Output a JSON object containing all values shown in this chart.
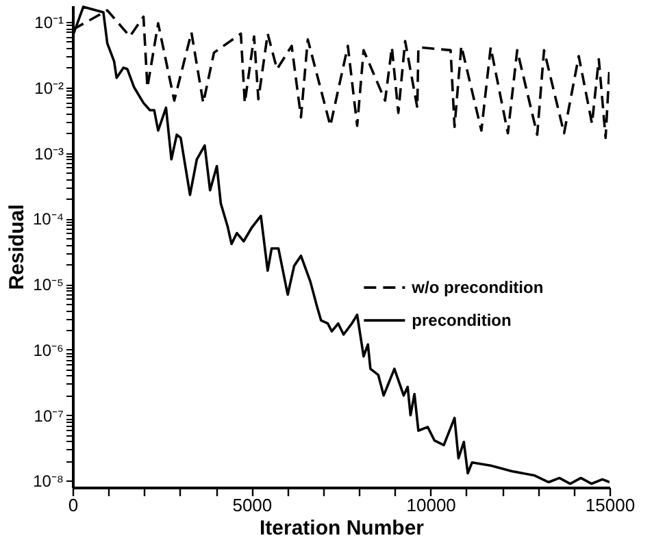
{
  "chart_data": {
    "type": "line",
    "xlabel": "Iteration Number",
    "ylabel": "Residual",
    "log": "y",
    "grid": false,
    "legend": "right",
    "xlim": [
      0,
      15000
    ],
    "xticks": [
      0,
      {
        "value": 1000,
        "label": null
      },
      {
        "value": 2000,
        "label": null
      },
      {
        "value": 3000,
        "label": null
      },
      {
        "value": 4000,
        "label": null
      },
      5000,
      {
        "value": 6000,
        "label": null
      },
      {
        "value": 7000,
        "label": null
      },
      {
        "value": 8000,
        "label": null
      },
      {
        "value": 9000,
        "label": null
      },
      10000,
      {
        "value": 11000,
        "label": null
      },
      {
        "value": 12000,
        "label": null
      },
      {
        "value": 13000,
        "label": null
      },
      {
        "value": 14000,
        "label": null
      },
      15000
    ],
    "ylim": [
      7.94e-09,
      0.178
    ],
    "yticks": [
      {
        "value": 1e-08,
        "label": "10⁻⁸"
      },
      {
        "value": 2e-08,
        "label": null
      },
      {
        "value": 3e-08,
        "label": null
      },
      {
        "value": 4e-08,
        "label": null
      },
      {
        "value": 5e-08,
        "label": null
      },
      {
        "value": 6e-08,
        "label": null
      },
      {
        "value": 7e-08,
        "label": null
      },
      {
        "value": 8e-08,
        "label": null
      },
      {
        "value": 9e-08,
        "label": null
      },
      {
        "value": 1e-07,
        "label": "10⁻⁷"
      },
      {
        "value": 2e-07,
        "label": null
      },
      {
        "value": 3e-07,
        "label": null
      },
      {
        "value": 4e-07,
        "label": null
      },
      {
        "value": 5e-07,
        "label": null
      },
      {
        "value": 6e-07,
        "label": null
      },
      {
        "value": 7e-07,
        "label": null
      },
      {
        "value": 8e-07,
        "label": null
      },
      {
        "value": 9e-07,
        "label": null
      },
      {
        "value": 1e-06,
        "label": "10⁻⁶"
      },
      {
        "value": 2e-06,
        "label": null
      },
      {
        "value": 3e-06,
        "label": null
      },
      {
        "value": 4e-06,
        "label": null
      },
      {
        "value": 5e-06,
        "label": null
      },
      {
        "value": 6e-06,
        "label": null
      },
      {
        "value": 7e-06,
        "label": null
      },
      {
        "value": 8e-06,
        "label": null
      },
      {
        "value": 9e-06,
        "label": null
      },
      {
        "value": 1e-05,
        "label": "10⁻⁵"
      },
      {
        "value": 2e-05,
        "label": null
      },
      {
        "value": 3e-05,
        "label": null
      },
      {
        "value": 4e-05,
        "label": null
      },
      {
        "value": 5e-05,
        "label": null
      },
      {
        "value": 6e-05,
        "label": null
      },
      {
        "value": 7e-05,
        "label": null
      },
      {
        "value": 8e-05,
        "label": null
      },
      {
        "value": 9e-05,
        "label": null
      },
      {
        "value": 0.0001,
        "label": "10⁻⁴"
      },
      {
        "value": 0.0002,
        "label": null
      },
      {
        "value": 0.0003,
        "label": null
      },
      {
        "value": 0.0004,
        "label": null
      },
      {
        "value": 0.0005,
        "label": null
      },
      {
        "value": 0.0006,
        "label": null
      },
      {
        "value": 0.0007,
        "label": null
      },
      {
        "value": 0.0008,
        "label": null
      },
      {
        "value": 0.0009,
        "label": null
      },
      {
        "value": 0.001,
        "label": "10⁻³"
      },
      {
        "value": 0.002,
        "label": null
      },
      {
        "value": 0.003,
        "label": null
      },
      {
        "value": 0.004,
        "label": null
      },
      {
        "value": 0.005,
        "label": null
      },
      {
        "value": 0.006,
        "label": null
      },
      {
        "value": 0.007,
        "label": null
      },
      {
        "value": 0.008,
        "label": null
      },
      {
        "value": 0.009,
        "label": null
      },
      {
        "value": 0.01,
        "label": "10⁻²"
      },
      {
        "value": 0.02,
        "label": null
      },
      {
        "value": 0.03,
        "label": null
      },
      {
        "value": 0.04,
        "label": null
      },
      {
        "value": 0.05,
        "label": null
      },
      {
        "value": 0.06,
        "label": null
      },
      {
        "value": 0.07,
        "label": null
      },
      {
        "value": 0.08,
        "label": null
      },
      {
        "value": 0.09,
        "label": null
      },
      {
        "value": 0.1,
        "label": "10⁻¹"
      }
    ],
    "series": [
      {
        "name": "w/o precondition",
        "color": "#000000",
        "line_style": "dashed",
        "x": [
          0,
          970,
          1600,
          1980,
          2090,
          2390,
          2840,
          3320,
          3650,
          3950,
          4700,
          4810,
          5070,
          5190,
          5450,
          5710,
          6120,
          6380,
          6570,
          7200,
          7690,
          7950,
          8130,
          8730,
          8920,
          9100,
          9290,
          9630,
          9660,
          10560,
          10670,
          10860,
          11420,
          11680,
          12160,
          12420,
          12980,
          13170,
          13730,
          14140,
          14510,
          14700,
          14890,
          15000
        ],
        "values": [
          0.076,
          0.15,
          0.06,
          0.12,
          0.01,
          0.095,
          0.0063,
          0.069,
          0.0058,
          0.034,
          0.066,
          0.0058,
          0.06,
          0.0066,
          0.066,
          0.019,
          0.043,
          0.0035,
          0.054,
          0.0026,
          0.043,
          0.0026,
          0.037,
          0.0063,
          0.041,
          0.0041,
          0.051,
          0.0049,
          0.041,
          0.037,
          0.0025,
          0.043,
          0.0022,
          0.041,
          0.002,
          0.037,
          0.0019,
          0.037,
          0.002,
          0.03,
          0.0028,
          0.027,
          0.0017,
          0.021
        ]
      },
      {
        "name": "precondition",
        "color": "#000000",
        "line_style": "solid",
        "x": [
          0,
          300,
          860,
          970,
          1160,
          1230,
          1420,
          1530,
          1720,
          1980,
          2160,
          2280,
          2390,
          2610,
          2760,
          2910,
          3020,
          3280,
          3470,
          3690,
          3840,
          4030,
          4140,
          4330,
          4440,
          4590,
          4780,
          5000,
          5260,
          5450,
          5560,
          5750,
          6010,
          6190,
          6380,
          6640,
          6830,
          6940,
          7130,
          7240,
          7420,
          7570,
          7800,
          7950,
          8130,
          8250,
          8320,
          8540,
          8690,
          8990,
          9250,
          9360,
          9440,
          9550,
          9660,
          9920,
          10110,
          10370,
          10670,
          10780,
          10930,
          11040,
          11160,
          11680,
          12270,
          12910,
          13300,
          13600,
          13900,
          14200,
          14500,
          14800,
          15000
        ],
        "values": [
          0.06,
          0.17,
          0.14,
          0.047,
          0.025,
          0.014,
          0.02,
          0.019,
          0.01,
          0.0058,
          0.0045,
          0.0045,
          0.0022,
          0.0049,
          0.0008,
          0.0019,
          0.0017,
          0.00023,
          0.0008,
          0.0013,
          0.00027,
          0.00063,
          0.00017,
          7.6e-05,
          4.1e-05,
          6e-05,
          4.5e-05,
          7.2e-05,
          0.00011,
          1.6e-05,
          3.5e-05,
          3.5e-05,
          6.9e-06,
          1.9e-05,
          2.7e-05,
          1.1e-05,
          4.5e-06,
          2.8e-06,
          2.5e-06,
          1.9e-06,
          2.5e-06,
          1.7e-06,
          2.5e-06,
          3.4e-06,
          7.9e-07,
          1.2e-06,
          5.1e-07,
          4.1e-07,
          2e-07,
          5.1e-07,
          2e-07,
          2.7e-07,
          1e-07,
          2.1e-07,
          5.8e-08,
          6.6e-08,
          4.1e-08,
          3.5e-08,
          9.1e-08,
          2.2e-08,
          3.9e-08,
          1.3e-08,
          1.9e-08,
          1.7e-08,
          1.4e-08,
          1.2e-08,
          9.5e-09,
          1.1e-08,
          9e-09,
          1.1e-08,
          9e-09,
          1.05e-08,
          9.5e-09
        ]
      }
    ]
  }
}
